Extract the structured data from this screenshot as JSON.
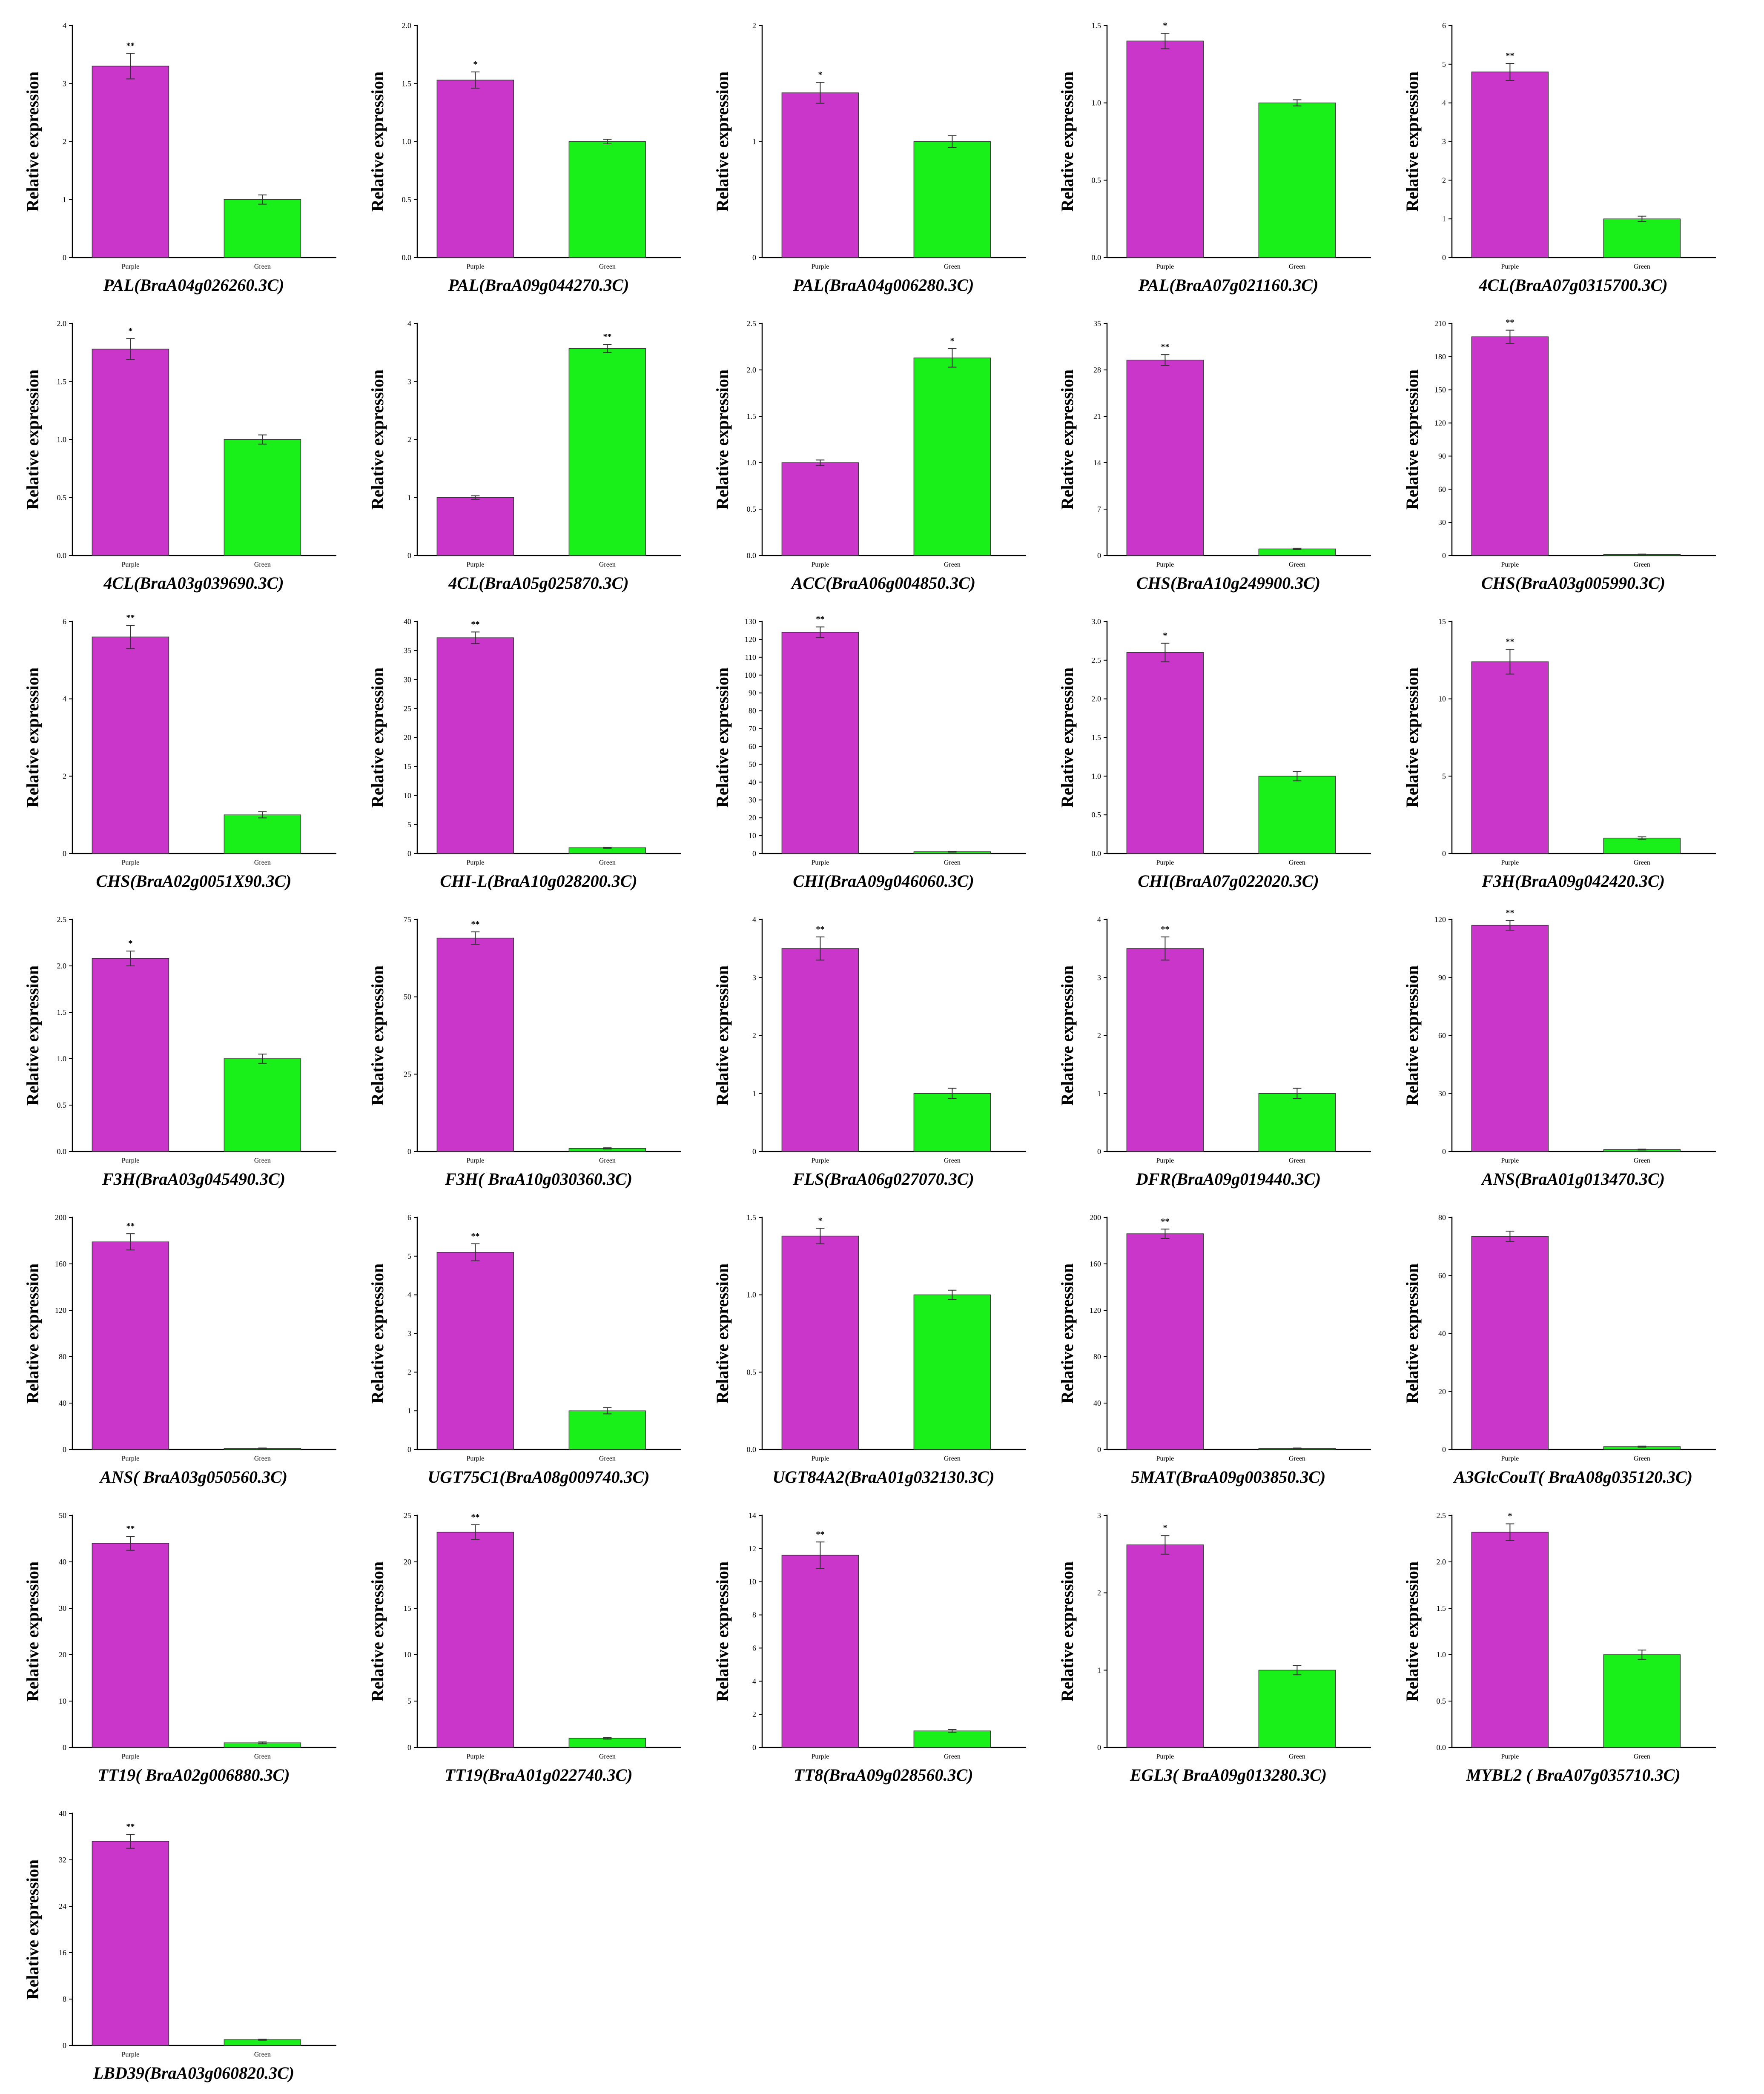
{
  "colors": {
    "purple": "#c936c9",
    "green": "#19f019"
  },
  "categories": [
    "Purple",
    "Green"
  ],
  "y_axis_label": "Relative expression",
  "chart_data": [
    {
      "type": "bar",
      "title": "PAL(BraA04g026260.3C)",
      "ylabel": "Relative expression",
      "categories": [
        "Purple",
        "Green"
      ],
      "values": [
        3.3,
        1.0
      ],
      "errors": [
        0.22,
        0.08
      ],
      "significance": "**",
      "ylim": [
        0,
        4
      ],
      "yticks": [
        "0",
        "1",
        "2",
        "3",
        "4"
      ]
    },
    {
      "type": "bar",
      "title": "PAL(BraA09g044270.3C)",
      "ylabel": "Relative expression",
      "categories": [
        "Purple",
        "Green"
      ],
      "values": [
        1.53,
        1.0
      ],
      "errors": [
        0.07,
        0.02
      ],
      "significance": "*",
      "ylim": [
        0,
        2.0
      ],
      "yticks": [
        "0.0",
        "0.5",
        "1.0",
        "1.5",
        "2.0"
      ]
    },
    {
      "type": "bar",
      "title": "PAL(BraA04g006280.3C)",
      "ylabel": "Relative expression",
      "categories": [
        "Purple",
        "Green"
      ],
      "values": [
        1.42,
        1.0
      ],
      "errors": [
        0.09,
        0.05
      ],
      "significance": "*",
      "ylim": [
        0,
        2
      ],
      "yticks": [
        "0",
        "1",
        "2"
      ]
    },
    {
      "type": "bar",
      "title": "PAL(BraA07g021160.3C)",
      "ylabel": "Relative expression",
      "categories": [
        "Purple",
        "Green"
      ],
      "values": [
        1.4,
        1.0
      ],
      "errors": [
        0.05,
        0.02
      ],
      "significance": "*",
      "ylim": [
        0,
        1.5
      ],
      "yticks": [
        "0.0",
        "0.5",
        "1.0",
        "1.5"
      ]
    },
    {
      "type": "bar",
      "title": "4CL(BraA07g0315700.3C)",
      "ylabel": "Relative expression",
      "categories": [
        "Purple",
        "Green"
      ],
      "values": [
        4.8,
        1.0
      ],
      "errors": [
        0.22,
        0.07
      ],
      "significance": "**",
      "ylim": [
        0,
        6
      ],
      "yticks": [
        "0",
        "1",
        "2",
        "3",
        "4",
        "5",
        "6"
      ]
    },
    {
      "type": "bar",
      "title": "4CL(BraA03g039690.3C)",
      "ylabel": "Relative expression",
      "categories": [
        "Purple",
        "Green"
      ],
      "values": [
        1.78,
        1.0
      ],
      "errors": [
        0.09,
        0.04
      ],
      "significance": "*",
      "ylim": [
        0,
        2.0
      ],
      "yticks": [
        "0.0",
        "0.5",
        "1.0",
        "1.5",
        "2.0"
      ]
    },
    {
      "type": "bar",
      "title": "4CL(BraA05g025870.3C)",
      "ylabel": "Relative expression",
      "categories": [
        "Purple",
        "Green"
      ],
      "values": [
        1.0,
        3.57
      ],
      "errors": [
        0.03,
        0.07
      ],
      "significance": "**",
      "ylim": [
        0,
        4
      ],
      "yticks": [
        "0",
        "1",
        "2",
        "3",
        "4"
      ]
    },
    {
      "type": "bar",
      "title": "ACC(BraA06g004850.3C)",
      "ylabel": "Relative expression",
      "categories": [
        "Purple",
        "Green"
      ],
      "values": [
        1.0,
        2.13
      ],
      "errors": [
        0.03,
        0.1
      ],
      "significance": "*",
      "ylim": [
        0,
        2.5
      ],
      "yticks": [
        "0.0",
        "0.5",
        "1.0",
        "1.5",
        "2.0",
        "2.5"
      ]
    },
    {
      "type": "bar",
      "title": "CHS(BraA10g249900.3C)",
      "ylabel": "Relative expression",
      "categories": [
        "Purple",
        "Green"
      ],
      "values": [
        29.5,
        1.0
      ],
      "errors": [
        0.8,
        0.1
      ],
      "significance": "**",
      "ylim": [
        0,
        35
      ],
      "yticks": [
        "0",
        "7",
        "14",
        "21",
        "28",
        "35"
      ]
    },
    {
      "type": "bar",
      "title": "CHS(BraA03g005990.3C)",
      "ylabel": "Relative expression",
      "categories": [
        "Purple",
        "Green"
      ],
      "values": [
        198,
        1.0
      ],
      "errors": [
        6,
        0.3
      ],
      "significance": "**",
      "ylim": [
        0,
        210
      ],
      "yticks": [
        "0",
        "30",
        "60",
        "90",
        "120",
        "150",
        "180",
        "210"
      ]
    },
    {
      "type": "bar",
      "title": "CHS(BraA02g0051X90.3C)",
      "ylabel": "Relative expression",
      "categories": [
        "Purple",
        "Green"
      ],
      "values": [
        5.6,
        1.0
      ],
      "errors": [
        0.3,
        0.08
      ],
      "significance": "**",
      "ylim": [
        0,
        6
      ],
      "yticks": [
        "0",
        "2",
        "4",
        "6"
      ]
    },
    {
      "type": "bar",
      "title": "CHI-L(BraA10g028200.3C)",
      "ylabel": "Relative expression",
      "categories": [
        "Purple",
        "Green"
      ],
      "values": [
        37.2,
        1.0
      ],
      "errors": [
        1.0,
        0.1
      ],
      "significance": "**",
      "ylim": [
        0,
        40
      ],
      "yticks": [
        "0",
        "5",
        "10",
        "15",
        "20",
        "25",
        "30",
        "35",
        "40"
      ]
    },
    {
      "type": "bar",
      "title": "CHI(BraA09g046060.3C)",
      "ylabel": "Relative expression",
      "categories": [
        "Purple",
        "Green"
      ],
      "values": [
        124,
        1.0
      ],
      "errors": [
        3,
        0.2
      ],
      "significance": "**",
      "ylim": [
        0,
        130
      ],
      "yticks": [
        "0",
        "10",
        "20",
        "30",
        "40",
        "50",
        "60",
        "70",
        "80",
        "90",
        "100",
        "110",
        "120",
        "130"
      ]
    },
    {
      "type": "bar",
      "title": "CHI(BraA07g022020.3C)",
      "ylabel": "Relative expression",
      "categories": [
        "Purple",
        "Green"
      ],
      "values": [
        2.6,
        1.0
      ],
      "errors": [
        0.12,
        0.06
      ],
      "significance": "*",
      "ylim": [
        0,
        3.0
      ],
      "yticks": [
        "0.0",
        "0.5",
        "1.0",
        "1.5",
        "2.0",
        "2.5",
        "3.0"
      ]
    },
    {
      "type": "bar",
      "title": "F3H(BraA09g042420.3C)",
      "ylabel": "Relative expression",
      "categories": [
        "Purple",
        "Green"
      ],
      "values": [
        12.4,
        1.0
      ],
      "errors": [
        0.8,
        0.08
      ],
      "significance": "**",
      "ylim": [
        0,
        15
      ],
      "yticks": [
        "0",
        "5",
        "10",
        "15"
      ]
    },
    {
      "type": "bar",
      "title": "F3H(BraA03g045490.3C)",
      "ylabel": "Relative expression",
      "categories": [
        "Purple",
        "Green"
      ],
      "values": [
        2.08,
        1.0
      ],
      "errors": [
        0.08,
        0.05
      ],
      "significance": "*",
      "ylim": [
        0,
        2.5
      ],
      "yticks": [
        "0.0",
        "0.5",
        "1.0",
        "1.5",
        "2.0",
        "2.5"
      ]
    },
    {
      "type": "bar",
      "title": "F3H( BraA10g030360.3C)",
      "ylabel": "Relative expression",
      "categories": [
        "Purple",
        "Green"
      ],
      "values": [
        69,
        1.0
      ],
      "errors": [
        2,
        0.2
      ],
      "significance": "**",
      "ylim": [
        0,
        75
      ],
      "yticks": [
        "0",
        "25",
        "50",
        "75"
      ]
    },
    {
      "type": "bar",
      "title": "FLS(BraA06g027070.3C)",
      "ylabel": "Relative expression",
      "categories": [
        "Purple",
        "Green"
      ],
      "values": [
        3.5,
        1.0
      ],
      "errors": [
        0.2,
        0.09
      ],
      "significance": "**",
      "ylim": [
        0,
        4
      ],
      "yticks": [
        "0",
        "1",
        "2",
        "3",
        "4"
      ]
    },
    {
      "type": "bar",
      "title": "DFR(BraA09g019440.3C)",
      "ylabel": "Relative expression",
      "categories": [
        "Purple",
        "Green"
      ],
      "values": [
        3.5,
        1.0
      ],
      "errors": [
        0.2,
        0.09
      ],
      "significance": "**",
      "ylim": [
        0,
        4
      ],
      "yticks": [
        "0",
        "1",
        "2",
        "3",
        "4"
      ]
    },
    {
      "type": "bar",
      "title": "ANS(BraA01g013470.3C)",
      "ylabel": "Relative expression",
      "categories": [
        "Purple",
        "Green"
      ],
      "values": [
        117,
        1.0
      ],
      "errors": [
        2.5,
        0.2
      ],
      "significance": "**",
      "ylim": [
        0,
        120
      ],
      "yticks": [
        "0",
        "30",
        "60",
        "90",
        "120"
      ]
    },
    {
      "type": "bar",
      "title": "ANS( BraA03g050560.3C)",
      "ylabel": "Relative expression",
      "categories": [
        "Purple",
        "Green"
      ],
      "values": [
        179,
        1.0
      ],
      "errors": [
        7,
        0.3
      ],
      "significance": "**",
      "ylim": [
        0,
        200
      ],
      "yticks": [
        "0",
        "40",
        "80",
        "120",
        "160",
        "200"
      ]
    },
    {
      "type": "bar",
      "title": "UGT75C1(BraA08g009740.3C)",
      "ylabel": "Relative expression",
      "categories": [
        "Purple",
        "Green"
      ],
      "values": [
        5.1,
        1.0
      ],
      "errors": [
        0.22,
        0.08
      ],
      "significance": "**",
      "ylim": [
        0,
        6
      ],
      "yticks": [
        "0",
        "1",
        "2",
        "3",
        "4",
        "5",
        "6"
      ]
    },
    {
      "type": "bar",
      "title": "UGT84A2(BraA01g032130.3C)",
      "ylabel": "Relative expression",
      "categories": [
        "Purple",
        "Green"
      ],
      "values": [
        1.38,
        1.0
      ],
      "errors": [
        0.05,
        0.03
      ],
      "significance": "*",
      "ylim": [
        0,
        1.5
      ],
      "yticks": [
        "0.0",
        "0.5",
        "1.0",
        "1.5"
      ]
    },
    {
      "type": "bar",
      "title": "5MAT(BraA09g003850.3C)",
      "ylabel": "Relative expression",
      "categories": [
        "Purple",
        "Green"
      ],
      "values": [
        186,
        1.0
      ],
      "errors": [
        4,
        0.3
      ],
      "significance": "**",
      "ylim": [
        0,
        200
      ],
      "yticks": [
        "0",
        "40",
        "80",
        "120",
        "160",
        "200"
      ]
    },
    {
      "type": "bar",
      "title": "A3GlcCouT( BraA08g035120.3C)",
      "ylabel": "Relative expression",
      "categories": [
        "Purple",
        "Green"
      ],
      "values": [
        73.5,
        1.0
      ],
      "errors": [
        1.8,
        0.2
      ],
      "significance": "",
      "ylim": [
        0,
        80
      ],
      "yticks": [
        "0",
        "20",
        "40",
        "60",
        "80"
      ]
    },
    {
      "type": "bar",
      "title": "TT19( BraA02g006880.3C)",
      "ylabel": "Relative expression",
      "categories": [
        "Purple",
        "Green"
      ],
      "values": [
        44,
        1.0
      ],
      "errors": [
        1.5,
        0.2
      ],
      "significance": "**",
      "ylim": [
        0,
        50
      ],
      "yticks": [
        "0",
        "10",
        "20",
        "30",
        "40",
        "50"
      ]
    },
    {
      "type": "bar",
      "title": "TT19(BraA01g022740.3C)",
      "ylabel": "Relative expression",
      "categories": [
        "Purple",
        "Green"
      ],
      "values": [
        23.2,
        1.0
      ],
      "errors": [
        0.8,
        0.1
      ],
      "significance": "**",
      "ylim": [
        0,
        25
      ],
      "yticks": [
        "0",
        "5",
        "10",
        "15",
        "20",
        "25"
      ]
    },
    {
      "type": "bar",
      "title": "TT8(BraA09g028560.3C)",
      "ylabel": "Relative expression",
      "categories": [
        "Purple",
        "Green"
      ],
      "values": [
        11.6,
        1.0
      ],
      "errors": [
        0.8,
        0.08
      ],
      "significance": "**",
      "ylim": [
        0,
        14
      ],
      "yticks": [
        "0",
        "2",
        "4",
        "6",
        "8",
        "10",
        "12",
        "14"
      ]
    },
    {
      "type": "bar",
      "title": "EGL3( BraA09g013280.3C)",
      "ylabel": "Relative expression",
      "categories": [
        "Purple",
        "Green"
      ],
      "values": [
        2.62,
        1.0
      ],
      "errors": [
        0.12,
        0.06
      ],
      "significance": "*",
      "ylim": [
        0,
        3
      ],
      "yticks": [
        "0",
        "1",
        "2",
        "3"
      ]
    },
    {
      "type": "bar",
      "title": "MYBL2 ( BraA07g035710.3C)",
      "ylabel": "Relative expression",
      "categories": [
        "Purple",
        "Green"
      ],
      "values": [
        2.32,
        1.0
      ],
      "errors": [
        0.09,
        0.05
      ],
      "significance": "*",
      "ylim": [
        0,
        2.5
      ],
      "yticks": [
        "0.0",
        "0.5",
        "1.0",
        "1.5",
        "2.0",
        "2.5"
      ]
    },
    {
      "type": "bar",
      "title": "LBD39(BraA03g060820.3C)",
      "ylabel": "Relative expression",
      "categories": [
        "Purple",
        "Green"
      ],
      "values": [
        35.2,
        1.0
      ],
      "errors": [
        1.2,
        0.1
      ],
      "significance": "**",
      "ylim": [
        0,
        40
      ],
      "yticks": [
        "0",
        "8",
        "16",
        "24",
        "32",
        "40"
      ]
    }
  ]
}
